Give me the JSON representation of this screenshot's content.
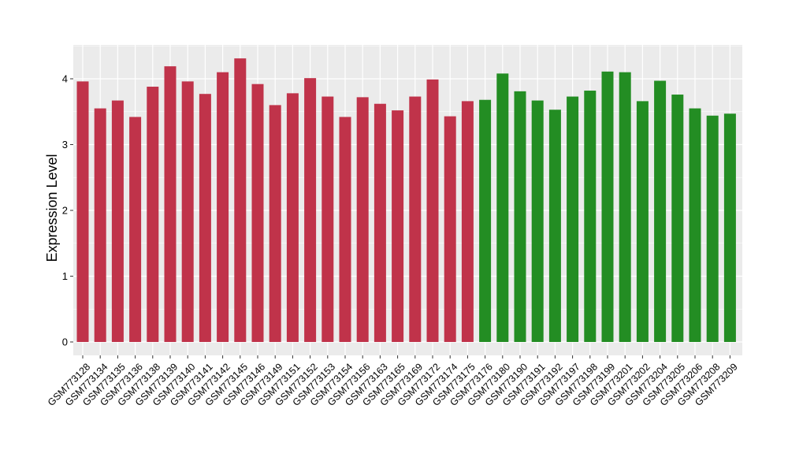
{
  "chart_data": {
    "type": "bar",
    "title": "",
    "xlabel": "",
    "ylabel": "Expression Level",
    "ylim": [
      -0.2,
      4.5
    ],
    "yticks": [
      0,
      1,
      2,
      3,
      4
    ],
    "grid": true,
    "legend": "none",
    "categories": [
      "GSM773128",
      "GSM773134",
      "GSM773135",
      "GSM773136",
      "GSM773138",
      "GSM773139",
      "GSM773140",
      "GSM773141",
      "GSM773142",
      "GSM773145",
      "GSM773146",
      "GSM773149",
      "GSM773151",
      "GSM773152",
      "GSM773153",
      "GSM773154",
      "GSM773156",
      "GSM773163",
      "GSM773165",
      "GSM773169",
      "GSM773172",
      "GSM773174",
      "GSM773175",
      "GSM773176",
      "GSM773180",
      "GSM773190",
      "GSM773191",
      "GSM773192",
      "GSM773197",
      "GSM773198",
      "GSM773199",
      "GSM773201",
      "GSM773202",
      "GSM773204",
      "GSM773205",
      "GSM773206",
      "GSM773208",
      "GSM773209"
    ],
    "values": [
      3.96,
      3.55,
      3.67,
      3.42,
      3.88,
      4.19,
      3.96,
      3.77,
      4.1,
      4.31,
      3.92,
      3.6,
      3.78,
      4.01,
      3.73,
      3.42,
      3.72,
      3.62,
      3.52,
      3.73,
      3.99,
      3.43,
      3.66,
      3.68,
      4.08,
      3.81,
      3.67,
      3.53,
      3.73,
      3.82,
      4.11,
      4.1,
      3.66,
      3.97,
      3.76,
      3.55,
      3.44,
      3.47
    ],
    "groups": [
      0,
      0,
      0,
      0,
      0,
      0,
      0,
      0,
      0,
      0,
      0,
      0,
      0,
      0,
      0,
      0,
      0,
      0,
      0,
      0,
      0,
      0,
      0,
      1,
      1,
      1,
      1,
      1,
      1,
      1,
      1,
      1,
      1,
      1,
      1,
      1,
      1,
      1
    ],
    "group_colors": [
      "#C0334A",
      "#238D23"
    ],
    "panel_background": "#EBEBEB",
    "grid_color": "#FFFFFF"
  }
}
